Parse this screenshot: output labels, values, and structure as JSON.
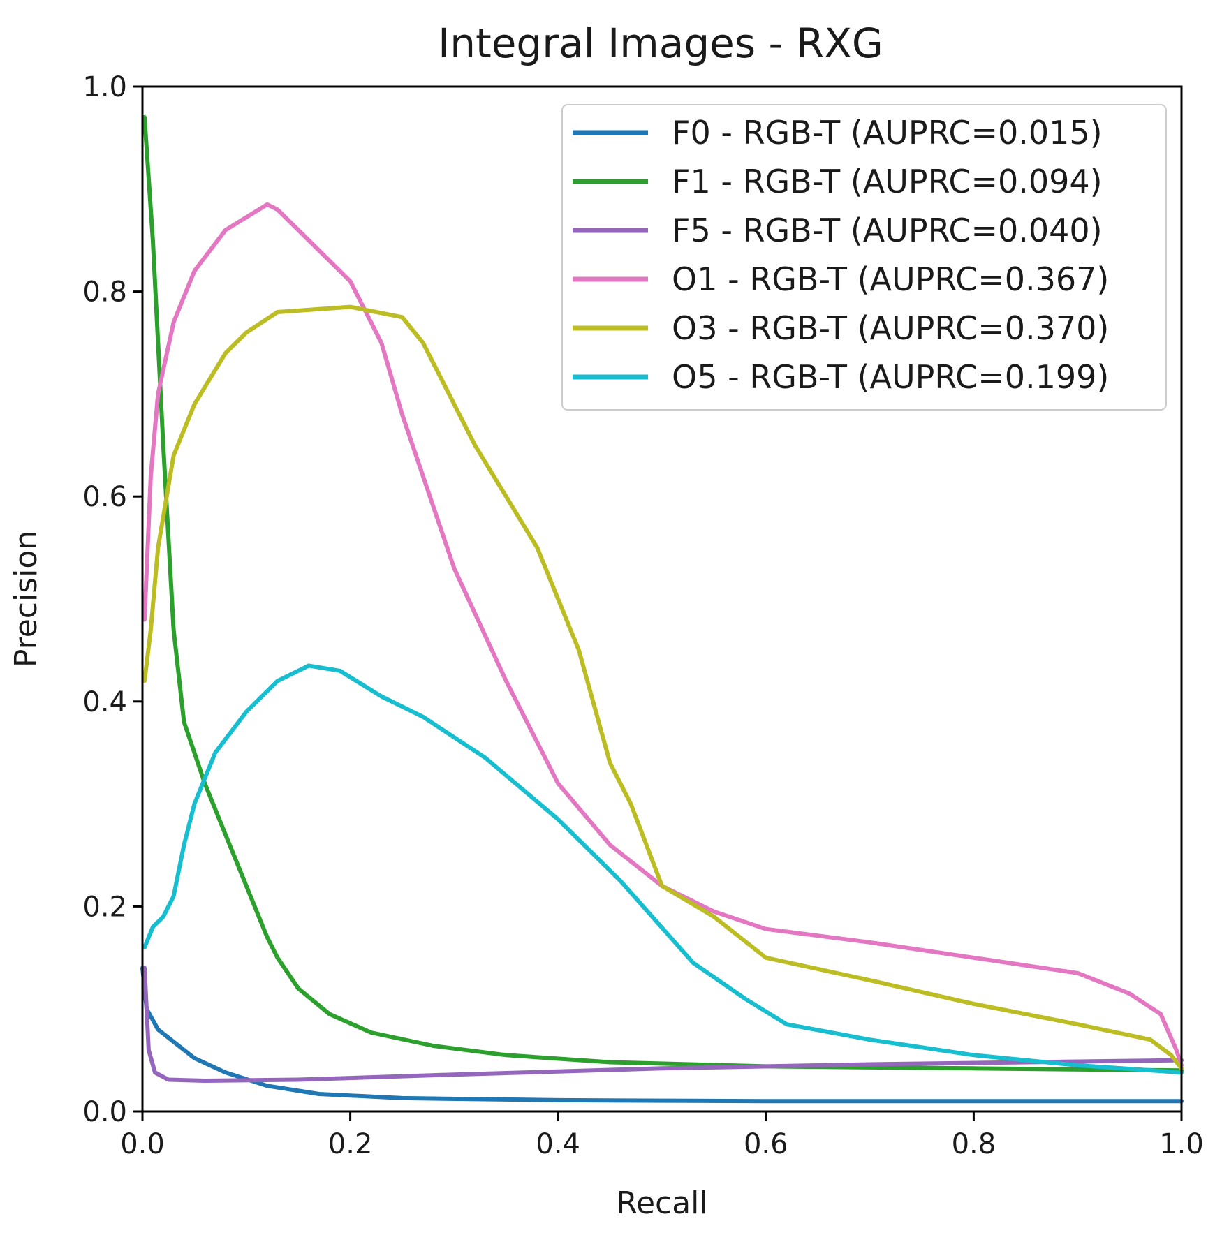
{
  "chart_data": {
    "type": "line",
    "title": "Integral Images - RXG",
    "xlabel": "Recall",
    "ylabel": "Precision",
    "xlim": [
      0,
      1
    ],
    "ylim": [
      0,
      1
    ],
    "grid": false,
    "legend_position": "top-right",
    "x_ticks": [
      "0.0",
      "0.2",
      "0.4",
      "0.6",
      "0.8",
      "1.0"
    ],
    "y_ticks": [
      "0.0",
      "0.2",
      "0.4",
      "0.6",
      "0.8",
      "1.0"
    ],
    "series": [
      {
        "name": "F0 - RGB-T (AUPRC=0.015)",
        "color": "#1f77b4",
        "points": [
          [
            0.0,
            0.14
          ],
          [
            0.004,
            0.1
          ],
          [
            0.015,
            0.08
          ],
          [
            0.03,
            0.068
          ],
          [
            0.05,
            0.052
          ],
          [
            0.08,
            0.038
          ],
          [
            0.12,
            0.025
          ],
          [
            0.17,
            0.017
          ],
          [
            0.25,
            0.013
          ],
          [
            0.4,
            0.011
          ],
          [
            0.6,
            0.01
          ],
          [
            0.8,
            0.01
          ],
          [
            1.0,
            0.01
          ]
        ]
      },
      {
        "name": "F1 - RGB-T (AUPRC=0.094)",
        "color": "#2ca02c",
        "points": [
          [
            0.002,
            0.97
          ],
          [
            0.01,
            0.85
          ],
          [
            0.02,
            0.65
          ],
          [
            0.03,
            0.47
          ],
          [
            0.04,
            0.38
          ],
          [
            0.06,
            0.32
          ],
          [
            0.08,
            0.27
          ],
          [
            0.1,
            0.22
          ],
          [
            0.12,
            0.17
          ],
          [
            0.13,
            0.15
          ],
          [
            0.15,
            0.12
          ],
          [
            0.18,
            0.095
          ],
          [
            0.22,
            0.077
          ],
          [
            0.28,
            0.064
          ],
          [
            0.35,
            0.055
          ],
          [
            0.45,
            0.048
          ],
          [
            0.6,
            0.044
          ],
          [
            0.8,
            0.042
          ],
          [
            1.0,
            0.04
          ]
        ]
      },
      {
        "name": "F5 - RGB-T (AUPRC=0.040)",
        "color": "#9467bd",
        "points": [
          [
            0.002,
            0.14
          ],
          [
            0.006,
            0.06
          ],
          [
            0.012,
            0.038
          ],
          [
            0.025,
            0.031
          ],
          [
            0.06,
            0.03
          ],
          [
            0.15,
            0.031
          ],
          [
            0.3,
            0.036
          ],
          [
            0.5,
            0.042
          ],
          [
            0.7,
            0.046
          ],
          [
            0.85,
            0.048
          ],
          [
            1.0,
            0.05
          ]
        ]
      },
      {
        "name": "O1 - RGB-T (AUPRC=0.367)",
        "color": "#e377c2",
        "points": [
          [
            0.002,
            0.48
          ],
          [
            0.008,
            0.62
          ],
          [
            0.015,
            0.7
          ],
          [
            0.03,
            0.77
          ],
          [
            0.05,
            0.82
          ],
          [
            0.08,
            0.86
          ],
          [
            0.12,
            0.885
          ],
          [
            0.13,
            0.88
          ],
          [
            0.16,
            0.85
          ],
          [
            0.2,
            0.81
          ],
          [
            0.23,
            0.75
          ],
          [
            0.25,
            0.68
          ],
          [
            0.3,
            0.53
          ],
          [
            0.35,
            0.42
          ],
          [
            0.4,
            0.32
          ],
          [
            0.45,
            0.26
          ],
          [
            0.5,
            0.22
          ],
          [
            0.55,
            0.195
          ],
          [
            0.6,
            0.178
          ],
          [
            0.7,
            0.165
          ],
          [
            0.8,
            0.15
          ],
          [
            0.9,
            0.135
          ],
          [
            0.95,
            0.115
          ],
          [
            0.98,
            0.095
          ],
          [
            0.995,
            0.06
          ],
          [
            1.0,
            0.045
          ]
        ]
      },
      {
        "name": "O3 - RGB-T (AUPRC=0.370)",
        "color": "#bcbd22",
        "points": [
          [
            0.002,
            0.42
          ],
          [
            0.008,
            0.47
          ],
          [
            0.015,
            0.55
          ],
          [
            0.03,
            0.64
          ],
          [
            0.05,
            0.69
          ],
          [
            0.08,
            0.74
          ],
          [
            0.1,
            0.76
          ],
          [
            0.13,
            0.78
          ],
          [
            0.2,
            0.785
          ],
          [
            0.25,
            0.775
          ],
          [
            0.27,
            0.75
          ],
          [
            0.32,
            0.65
          ],
          [
            0.38,
            0.55
          ],
          [
            0.42,
            0.45
          ],
          [
            0.45,
            0.34
          ],
          [
            0.47,
            0.3
          ],
          [
            0.5,
            0.22
          ],
          [
            0.55,
            0.19
          ],
          [
            0.6,
            0.15
          ],
          [
            0.7,
            0.128
          ],
          [
            0.8,
            0.105
          ],
          [
            0.9,
            0.085
          ],
          [
            0.97,
            0.07
          ],
          [
            0.99,
            0.055
          ],
          [
            1.0,
            0.042
          ]
        ]
      },
      {
        "name": "O5 - RGB-T (AUPRC=0.199)",
        "color": "#17becf",
        "points": [
          [
            0.002,
            0.16
          ],
          [
            0.01,
            0.18
          ],
          [
            0.02,
            0.19
          ],
          [
            0.03,
            0.21
          ],
          [
            0.04,
            0.26
          ],
          [
            0.05,
            0.3
          ],
          [
            0.07,
            0.35
          ],
          [
            0.1,
            0.39
          ],
          [
            0.13,
            0.42
          ],
          [
            0.16,
            0.435
          ],
          [
            0.19,
            0.43
          ],
          [
            0.23,
            0.405
          ],
          [
            0.27,
            0.385
          ],
          [
            0.33,
            0.345
          ],
          [
            0.4,
            0.285
          ],
          [
            0.46,
            0.225
          ],
          [
            0.53,
            0.145
          ],
          [
            0.58,
            0.11
          ],
          [
            0.62,
            0.085
          ],
          [
            0.7,
            0.07
          ],
          [
            0.8,
            0.055
          ],
          [
            0.9,
            0.045
          ],
          [
            1.0,
            0.038
          ]
        ]
      }
    ]
  }
}
